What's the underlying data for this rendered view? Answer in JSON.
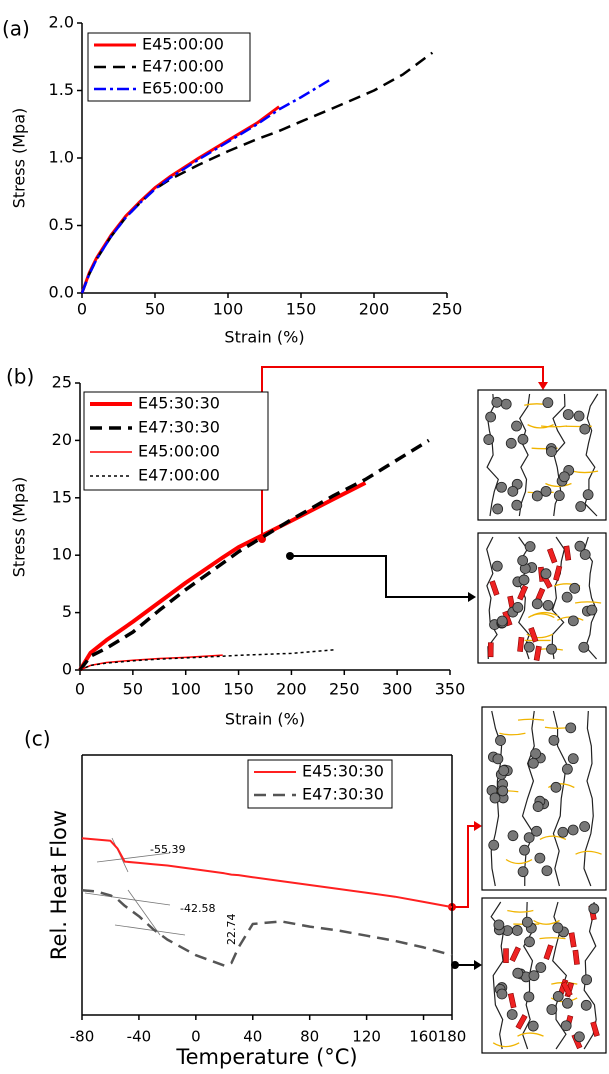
{
  "chart_data": [
    {
      "type": "line",
      "label": "(a)",
      "x_label": "Strain (%)",
      "y_label": "Stress (Mpa)",
      "x": [
        0,
        5,
        10,
        20,
        30,
        40,
        50,
        60,
        80,
        100,
        120,
        135,
        150,
        170,
        200,
        220,
        240
      ],
      "series": [
        {
          "name": "E45:00:00",
          "color": "#ff0000",
          "style": "solid",
          "width": 3,
          "values": [
            0,
            0.15,
            0.26,
            0.43,
            0.57,
            0.68,
            0.78,
            0.86,
            1.0,
            1.13,
            1.26,
            1.38,
            null,
            null,
            null,
            null,
            null
          ]
        },
        {
          "name": "E47:00:00",
          "color": "#000000",
          "style": "dash",
          "width": 2.5,
          "values": [
            0,
            0.14,
            0.25,
            0.42,
            0.56,
            0.67,
            0.77,
            0.84,
            0.95,
            1.05,
            1.14,
            1.2,
            1.27,
            1.36,
            1.5,
            1.62,
            1.78
          ]
        },
        {
          "name": "E65:00:00",
          "color": "#0000ff",
          "style": "dashdot",
          "width": 2.5,
          "values": [
            0,
            0.14,
            0.25,
            0.42,
            0.56,
            0.67,
            0.77,
            0.85,
            0.99,
            1.12,
            1.25,
            1.36,
            1.45,
            1.58,
            null,
            null,
            null
          ]
        }
      ],
      "xlim": [
        0,
        250
      ],
      "xticks": [
        0,
        50,
        100,
        150,
        200,
        250
      ],
      "ylim": [
        0,
        2
      ],
      "yticks": [
        {
          "value": 0,
          "label": "0.0"
        },
        0.5,
        {
          "value": 1,
          "label": "1.0"
        },
        1.5,
        {
          "value": 2,
          "label": "2.0"
        }
      ]
    },
    {
      "type": "line",
      "label": "(b)",
      "x_label": "Strain (%)",
      "y_label": "Stress (Mpa)",
      "x": [
        0,
        10,
        25,
        50,
        75,
        100,
        135,
        150,
        200,
        240,
        270,
        300,
        330
      ],
      "series": [
        {
          "name": "E45:30:30",
          "color": "#ff0000",
          "style": "solid",
          "width": 4,
          "values": [
            0,
            1.5,
            2.6,
            4.2,
            5.9,
            7.6,
            9.8,
            10.7,
            13.0,
            14.9,
            16.3,
            null,
            null
          ]
        },
        {
          "name": "E47:30:30",
          "color": "#000000",
          "style": "dash",
          "width": 3.5,
          "values": [
            0,
            1.2,
            1.9,
            3.3,
            5.2,
            7.0,
            9.3,
            10.3,
            13.1,
            15.2,
            16.6,
            18.3,
            20.0
          ]
        },
        {
          "name": "E45:00:00",
          "color": "#ff0000",
          "style": "solid",
          "width": 1.5,
          "values": [
            0,
            0.4,
            0.65,
            0.85,
            1.0,
            1.1,
            1.3,
            null,
            null,
            null,
            null,
            null,
            null
          ]
        },
        {
          "name": "E47:00:00",
          "color": "#000000",
          "style": "dot",
          "width": 1.5,
          "values": [
            0,
            0.4,
            0.6,
            0.8,
            0.95,
            1.05,
            1.2,
            1.28,
            1.45,
            1.75,
            null,
            null,
            null
          ]
        }
      ],
      "xlim": [
        0,
        350
      ],
      "xticks": [
        0,
        50,
        100,
        150,
        200,
        250,
        300,
        350
      ],
      "ylim": [
        0,
        25
      ],
      "yticks": [
        0,
        5,
        10,
        15,
        20,
        25
      ]
    },
    {
      "type": "line",
      "label": "(c)",
      "x_label": "Temperature (°C)",
      "y_label": "Rel. Heat Flow",
      "x": [
        -80,
        -70,
        -60,
        -55,
        -50,
        -40,
        -30,
        -20,
        0,
        20,
        25,
        30,
        40,
        60,
        80,
        100,
        120,
        140,
        160,
        180
      ],
      "series": [
        {
          "name": "E45:30:30",
          "color": "#ff2020",
          "style": "solid",
          "width": 2,
          "values": [
            6.8,
            6.75,
            6.7,
            6.4,
            5.9,
            5.85,
            5.8,
            5.75,
            5.6,
            5.45,
            5.4,
            5.38,
            5.3,
            5.15,
            5.0,
            4.85,
            4.7,
            4.55,
            4.35,
            4.15
          ]
        },
        {
          "name": "E47:30:30",
          "color": "#555555",
          "style": "dash",
          "width": 2.5,
          "values": [
            4.8,
            4.75,
            4.6,
            4.45,
            4.2,
            3.8,
            3.3,
            2.9,
            2.3,
            1.9,
            2.0,
            2.6,
            3.5,
            3.6,
            3.4,
            3.25,
            3.05,
            2.85,
            2.6,
            2.3
          ]
        }
      ],
      "annotations": [
        "-55.39",
        "-42.58",
        "22.74"
      ],
      "xlim": [
        -80,
        180
      ],
      "xticks": [
        -80,
        -40,
        0,
        40,
        80,
        120,
        160,
        180
      ],
      "ylim": [
        0,
        10
      ]
    }
  ]
}
